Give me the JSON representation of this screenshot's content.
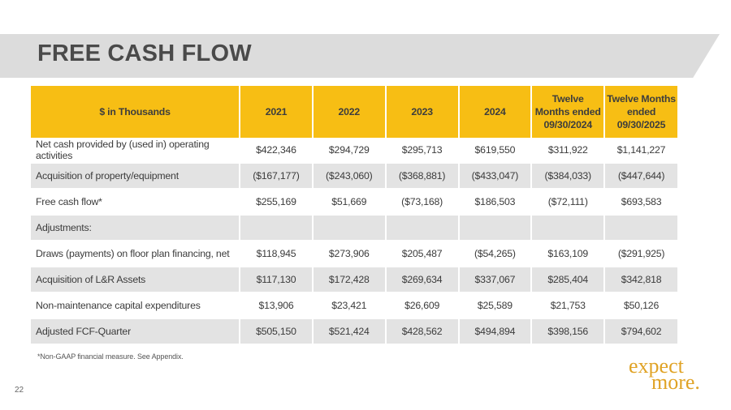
{
  "title": "FREE CASH FLOW",
  "table": {
    "header": [
      "$ in Thousands",
      "2021",
      "2022",
      "2023",
      "2024",
      "Twelve Months ended 09/30/2024",
      "Twelve Months ended 09/30/2025"
    ],
    "rows": [
      {
        "label": "Net cash provided by (used in) operating activities",
        "values": [
          "$422,346",
          "$294,729",
          "$295,713",
          "$619,550",
          "$311,922",
          "$1,141,227"
        ]
      },
      {
        "label": "Acquisition of property/equipment",
        "values": [
          "($167,177)",
          "($243,060)",
          "($368,881)",
          "($433,047)",
          "($384,033)",
          "($447,644)"
        ]
      },
      {
        "label": "Free cash flow*",
        "values": [
          "$255,169",
          "$51,669",
          "($73,168)",
          "$186,503",
          "($72,111)",
          "$693,583"
        ]
      },
      {
        "label": "Adjustments:",
        "values": [
          "",
          "",
          "",
          "",
          "",
          ""
        ]
      },
      {
        "label": "Draws (payments) on floor plan financing, net",
        "values": [
          "$118,945",
          "$273,906",
          "$205,487",
          "($54,265)",
          "$163,109",
          "($291,925)"
        ]
      },
      {
        "label": "Acquisition of L&R Assets",
        "values": [
          "$117,130",
          "$172,428",
          "$269,634",
          "$337,067",
          "$285,404",
          "$342,818"
        ]
      },
      {
        "label": "Non-maintenance capital expenditures",
        "values": [
          "$13,906",
          "$23,421",
          "$26,609",
          "$25,589",
          "$21,753",
          "$50,126"
        ]
      },
      {
        "label": "Adjusted FCF-Quarter",
        "values": [
          "$505,150",
          "$521,424",
          "$428,562",
          "$494,894",
          "$398,156",
          "$794,602"
        ]
      }
    ]
  },
  "footnote": "*Non-GAAP financial measure.  See Appendix.",
  "page_number": "22",
  "brand": {
    "line1": "expect",
    "line2": "more."
  },
  "colors": {
    "header_fill": "#f7be14",
    "band_gray": "#dcdcdc",
    "row_shade": "#e3e3e3",
    "brand": "#e0a326"
  }
}
